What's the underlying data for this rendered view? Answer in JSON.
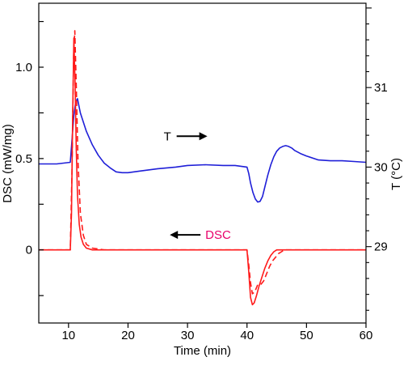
{
  "chart_data": {
    "type": "line",
    "xlabel": "Time (min)",
    "ylabel_left": "DSC (mW/mg)",
    "ylabel_right": "T (°C)",
    "xlim": [
      5,
      60
    ],
    "ylim_left": [
      -0.4,
      1.35
    ],
    "ylim_right": [
      28.04,
      32.06
    ],
    "x_ticks": [
      10,
      20,
      30,
      40,
      50,
      60
    ],
    "x_tick_labels": [
      "10",
      "20",
      "30",
      "40",
      "50",
      "60"
    ],
    "y_left_ticks": [
      -0.25,
      0,
      0.25,
      0.5,
      0.75,
      1.0,
      1.25
    ],
    "y_left_tick_labels": [
      {
        "value": 0,
        "label": "0"
      },
      {
        "value": 0.5,
        "label": "0.5"
      },
      {
        "value": 1.0,
        "label": "1.0"
      }
    ],
    "y_right_ticks": [
      28.2,
      28.4,
      28.6,
      28.8,
      29.0,
      29.2,
      29.4,
      29.6,
      29.8,
      30.0,
      30.2,
      30.4,
      30.6,
      30.8,
      31.0,
      31.2,
      31.4,
      31.6,
      31.8,
      32.0
    ],
    "y_right_tick_labels": [
      {
        "value": 29,
        "label": "29"
      },
      {
        "value": 30,
        "label": "30"
      },
      {
        "value": 31,
        "label": "31"
      }
    ],
    "annotations": [
      {
        "text": "T",
        "color": "#000000",
        "arrow": "right",
        "x": 26.0,
        "y_left": 0.6
      },
      {
        "text": "DSC",
        "color": "#e8006a",
        "arrow": "left",
        "x": 33.0,
        "y_left": 0.06
      }
    ],
    "series": [
      {
        "axis": "right",
        "color": "#1f1fd8",
        "style": "solid",
        "x": [
          5,
          8,
          10.3,
          10.6,
          10.9,
          11.2,
          11.5,
          12,
          13,
          14,
          15,
          16,
          17,
          18,
          19,
          20,
          22,
          25,
          28,
          30,
          33,
          36,
          38,
          40,
          40.3,
          40.6,
          41,
          41.4,
          41.8,
          42.2,
          42.6,
          43,
          43.5,
          44,
          44.5,
          45,
          45.5,
          46,
          46.5,
          47,
          47.5,
          48,
          49,
          50,
          52,
          54,
          56,
          58,
          60
        ],
        "y": [
          30.04,
          30.04,
          30.06,
          30.35,
          30.65,
          30.82,
          30.86,
          30.68,
          30.45,
          30.28,
          30.15,
          30.05,
          29.99,
          29.94,
          29.93,
          29.93,
          29.95,
          29.98,
          30.0,
          30.02,
          30.03,
          30.02,
          30.02,
          30.0,
          29.92,
          29.8,
          29.68,
          29.6,
          29.56,
          29.57,
          29.63,
          29.75,
          29.9,
          30.03,
          30.13,
          30.2,
          30.24,
          30.26,
          30.27,
          30.26,
          30.24,
          30.21,
          30.17,
          30.14,
          30.09,
          30.08,
          30.08,
          30.07,
          30.06
        ]
      },
      {
        "axis": "left",
        "color": "#ff1a1a",
        "style": "solid",
        "x": [
          5,
          10.3,
          10.5,
          10.7,
          10.9,
          11.1,
          11.3,
          11.5,
          11.8,
          12.1,
          12.5,
          13,
          14,
          16,
          20,
          30,
          40,
          40.3,
          40.6,
          40.9,
          41.2,
          41.6,
          42,
          42.5,
          43,
          43.5,
          44,
          44.5,
          45,
          45.5,
          46,
          47,
          48,
          50,
          55,
          60
        ],
        "y": [
          0,
          0.0,
          0.2,
          0.75,
          1.16,
          0.92,
          0.55,
          0.3,
          0.14,
          0.07,
          0.03,
          0.01,
          0.0,
          0.0,
          0.0,
          0.0,
          0.0,
          -0.12,
          -0.26,
          -0.3,
          -0.29,
          -0.25,
          -0.2,
          -0.15,
          -0.1,
          -0.06,
          -0.03,
          -0.01,
          0.0,
          0.0,
          0.0,
          0.0,
          0.0,
          0.0,
          0.0,
          0.0
        ]
      },
      {
        "axis": "left",
        "color": "#ff1a1a",
        "style": "dashed",
        "x": [
          5,
          10.3,
          10.6,
          10.85,
          11.05,
          11.3,
          11.6,
          12,
          12.5,
          13,
          14,
          16,
          20,
          30,
          40,
          40.3,
          40.6,
          40.9,
          41.3,
          41.8,
          42.3,
          42.8,
          43.3,
          43.8,
          44.3,
          44.8,
          45.3,
          45.8,
          46.3,
          47,
          48,
          50,
          55,
          60
        ],
        "y": [
          0,
          0.0,
          0.45,
          1.06,
          1.2,
          0.9,
          0.48,
          0.2,
          0.08,
          0.03,
          0.01,
          0.0,
          0.0,
          0.0,
          0.0,
          -0.08,
          -0.18,
          -0.24,
          -0.23,
          -0.19,
          -0.19,
          -0.17,
          -0.13,
          -0.09,
          -0.06,
          -0.04,
          -0.02,
          -0.01,
          0.0,
          0.0,
          0.0,
          0.0,
          0.0,
          0.0
        ]
      }
    ]
  }
}
